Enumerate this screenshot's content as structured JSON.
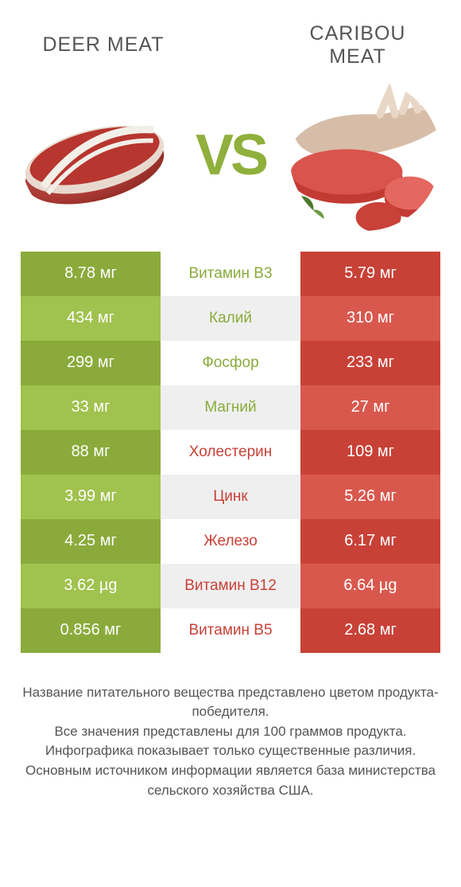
{
  "titles": {
    "left": "DEER MEAT",
    "right": "CARIBOU MEAT"
  },
  "vs_label": "VS",
  "colors": {
    "green_dark": "#8aab3b",
    "green_light": "#a0c24e",
    "red_dark": "#c84137",
    "red_light": "#d9584e",
    "mid_text_green": "#8aab3b",
    "mid_text_red": "#c84137",
    "white": "#ffffff",
    "gray_mid": "#efefef"
  },
  "rows": [
    {
      "left": "8.78 мг",
      "mid": "Витамин B3",
      "right": "5.79 мг",
      "winner": "left"
    },
    {
      "left": "434 мг",
      "mid": "Калий",
      "right": "310 мг",
      "winner": "left"
    },
    {
      "left": "299 мг",
      "mid": "Фосфор",
      "right": "233 мг",
      "winner": "left"
    },
    {
      "left": "33 мг",
      "mid": "Магний",
      "right": "27 мг",
      "winner": "left"
    },
    {
      "left": "88 мг",
      "mid": "Холестерин",
      "right": "109 мг",
      "winner": "right"
    },
    {
      "left": "3.99 мг",
      "mid": "Цинк",
      "right": "5.26 мг",
      "winner": "right"
    },
    {
      "left": "4.25 мг",
      "mid": "Железо",
      "right": "6.17 мг",
      "winner": "right"
    },
    {
      "left": "3.62 µg",
      "mid": "Витамин B12",
      "right": "6.64 µg",
      "winner": "right"
    },
    {
      "left": "0.856 мг",
      "mid": "Витамин B5",
      "right": "2.68 мг",
      "winner": "right"
    }
  ],
  "footnote_lines": [
    "Название питательного вещества представлено цветом продукта-победителя.",
    "Все значения представлены для 100 граммов продукта.",
    "Инфографика показывает только существенные различия.",
    "Основным источником информации является база министерства сельского хозяйства США."
  ]
}
